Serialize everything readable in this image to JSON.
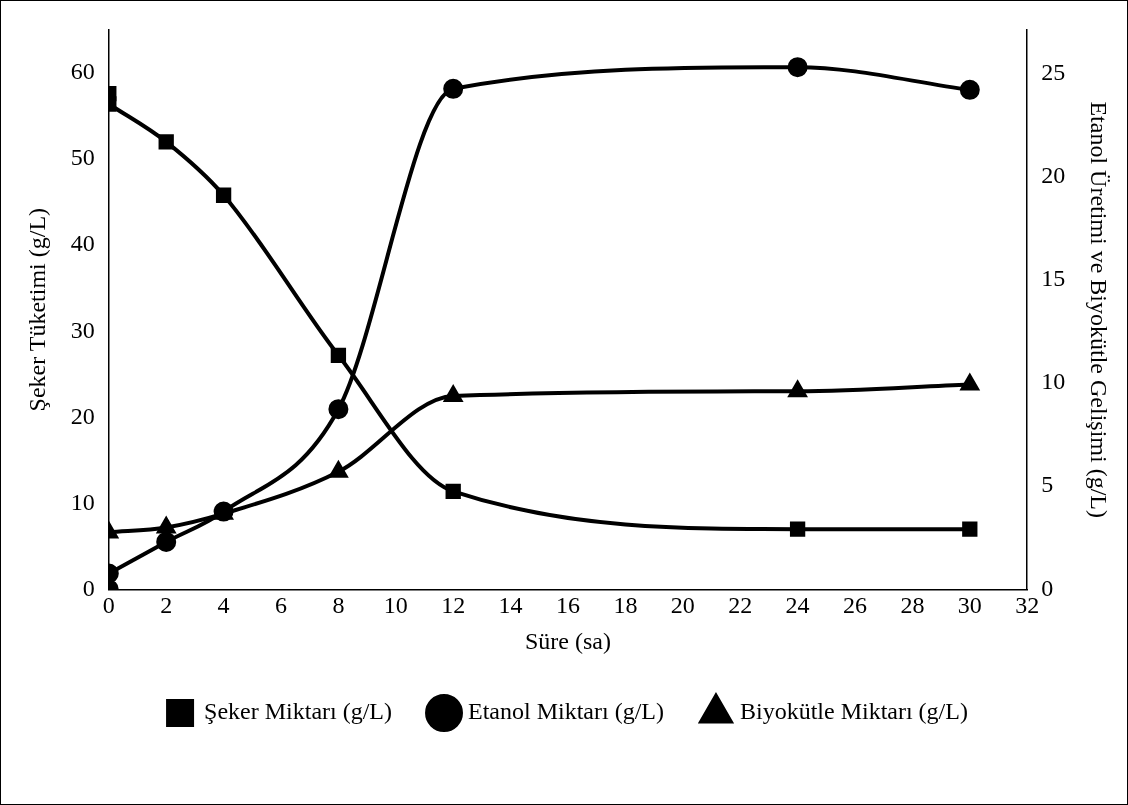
{
  "chart_data": {
    "type": "line",
    "xlabel": "Süre (sa)",
    "ylabel": "Şeker Tüketimi (g/L)",
    "y2label": "Etanol Üretimi ve Biyokütle Gelişimi (g/L)",
    "x": [
      0,
      2,
      4,
      8,
      12,
      24,
      30
    ],
    "xlim": [
      0,
      32
    ],
    "xticks": [
      0,
      2,
      4,
      6,
      8,
      10,
      12,
      14,
      16,
      18,
      20,
      22,
      24,
      26,
      28,
      30,
      32
    ],
    "ylim": [
      0,
      65
    ],
    "yticks": [
      0,
      10,
      20,
      30,
      40,
      50,
      60
    ],
    "y2lim": [
      0,
      27.1
    ],
    "y2ticks": [
      0,
      5,
      10,
      15,
      20,
      25
    ],
    "grid": false,
    "legend": "bottom",
    "series": [
      {
        "name": "Şeker Miktarı (g/L)",
        "color": "#000000",
        "marker": "square",
        "values": [
          56.4,
          52.0,
          45.8,
          27.2,
          11.4,
          7.0,
          7.0
        ]
      },
      {
        "name": "Etanol Miktarı (g/L)",
        "color": "#000000",
        "marker": "circle",
        "axis": "y2",
        "values": [
          0.77,
          2.3,
          3.77,
          8.73,
          24.25,
          25.3,
          24.2
        ]
      },
      {
        "name": "Biyokütle Miktarı (g/L)",
        "color": "#000000",
        "marker": "triangle",
        "axis": "y2",
        "values": [
          2.76,
          3.0,
          3.67,
          5.7,
          9.37,
          9.6,
          9.93
        ]
      },
      {
        "type": "scatter",
        "color": "#000000",
        "marker": "square",
        "x": [
          0
        ],
        "values": [
          57.6
        ]
      },
      {
        "type": "scatter",
        "color": "#000000",
        "marker": "circle",
        "axis": "y2",
        "x": [
          0
        ],
        "values": [
          0
        ]
      }
    ]
  }
}
